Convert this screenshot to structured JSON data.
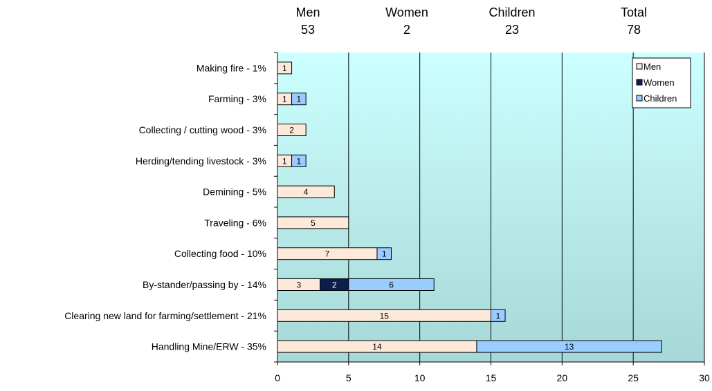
{
  "summary": [
    {
      "label": "Men",
      "value": "53"
    },
    {
      "label": "Women",
      "value": "2"
    },
    {
      "label": "Children",
      "value": "23"
    },
    {
      "label": "Total",
      "value": "78"
    }
  ],
  "chart_data": {
    "type": "bar",
    "orientation": "horizontal",
    "stacked": true,
    "categories": [
      "Making fire - 1%",
      "Farming - 3%",
      "Collecting / cutting wood - 3%",
      "Herding/tending livestock - 3%",
      "Demining - 5%",
      "Traveling - 6%",
      "Collecting food - 10%",
      "By-stander/passing by - 14%",
      "Clearing new land for farming/settlement - 21%",
      "Handling Mine/ERW - 35%"
    ],
    "series": [
      {
        "name": "Men",
        "color": "#fde9d9",
        "label_color": "#000000",
        "values": [
          1,
          1,
          2,
          1,
          4,
          5,
          7,
          3,
          15,
          14
        ]
      },
      {
        "name": "Women",
        "color": "#0b1f4f",
        "label_color": "#ffffff",
        "values": [
          0,
          0,
          0,
          0,
          0,
          0,
          0,
          2,
          0,
          0
        ]
      },
      {
        "name": "Children",
        "color": "#99ccff",
        "label_color": "#000000",
        "values": [
          0,
          1,
          0,
          1,
          0,
          0,
          1,
          6,
          1,
          13
        ]
      }
    ],
    "xlim": [
      0,
      30
    ],
    "xticks": [
      0,
      5,
      10,
      15,
      20,
      25,
      30
    ],
    "grid": "vertical",
    "legend": "top-right",
    "background_gradient": [
      "#ccffff",
      "#a7d8d8"
    ]
  }
}
